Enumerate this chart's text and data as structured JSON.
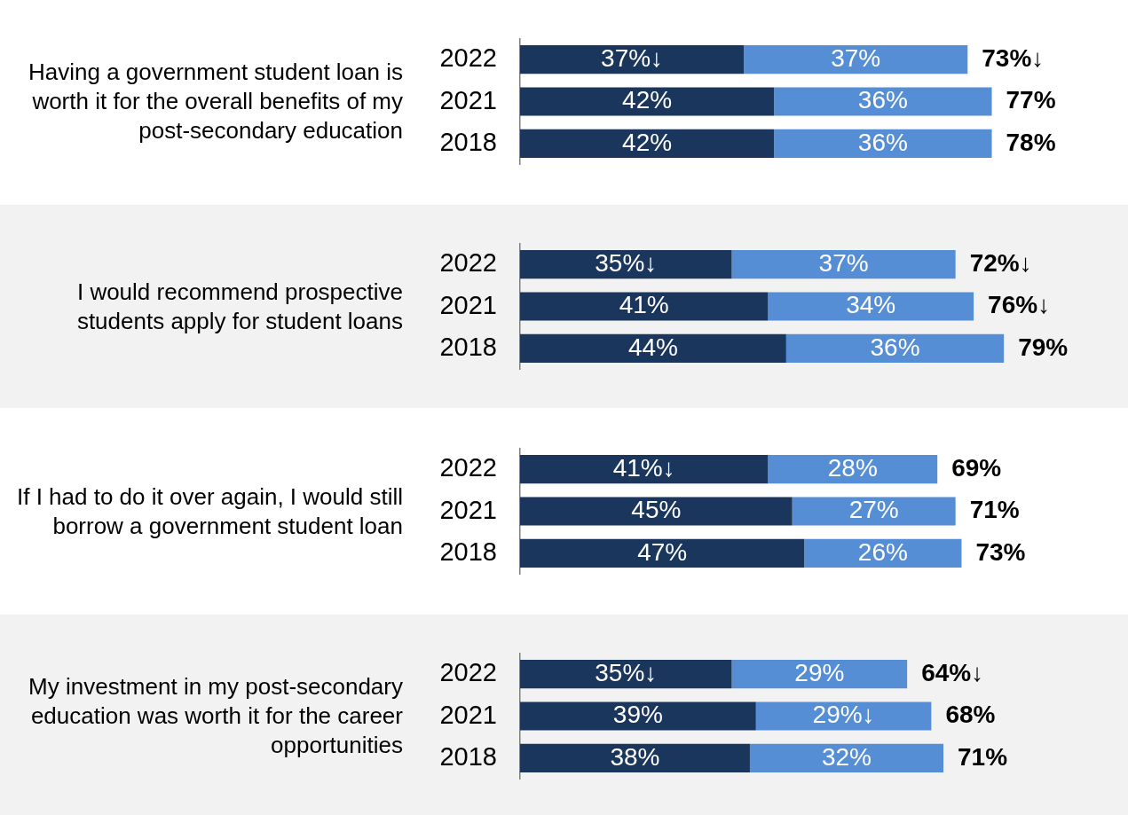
{
  "chart_data": [
    {
      "type": "bar",
      "orientation": "horizontal",
      "stacked": true,
      "grid": false,
      "tick_labels": "y",
      "title": "Having a government student loan is worth it for the overall benefits of my post-secondary education",
      "categories": [
        "2022",
        "2021",
        "2018"
      ],
      "series": [
        {
          "color": "#1b365d",
          "values": [
            37,
            42,
            42
          ],
          "value_labels": [
            "37%↓",
            "42%",
            "42%"
          ]
        },
        {
          "color": "#558ed5",
          "values": [
            37,
            36,
            36
          ],
          "value_labels": [
            "37%",
            "36%",
            "36%"
          ]
        }
      ],
      "totals": [
        "73%↓",
        "77%",
        "78%"
      ]
    },
    {
      "type": "bar",
      "orientation": "horizontal",
      "stacked": true,
      "grid": false,
      "tick_labels": "y",
      "title": "I would recommend prospective students apply for student loans",
      "categories": [
        "2022",
        "2021",
        "2018"
      ],
      "series": [
        {
          "color": "#1b365d",
          "values": [
            35,
            41,
            44
          ],
          "value_labels": [
            "35%↓",
            "41%",
            "44%"
          ]
        },
        {
          "color": "#558ed5",
          "values": [
            37,
            34,
            36
          ],
          "value_labels": [
            "37%",
            "34%",
            "36%"
          ]
        }
      ],
      "totals": [
        "72%↓",
        "76%↓",
        "79%"
      ]
    },
    {
      "type": "bar",
      "orientation": "horizontal",
      "stacked": true,
      "grid": false,
      "tick_labels": "y",
      "title": "If I had to do it over again, I would still borrow a government student loan",
      "categories": [
        "2022",
        "2021",
        "2018"
      ],
      "series": [
        {
          "color": "#1b365d",
          "values": [
            41,
            45,
            47
          ],
          "value_labels": [
            "41%↓",
            "45%",
            "47%"
          ]
        },
        {
          "color": "#558ed5",
          "values": [
            28,
            27,
            26
          ],
          "value_labels": [
            "28%",
            "27%",
            "26%"
          ]
        }
      ],
      "totals": [
        "69%",
        "71%",
        "73%"
      ]
    },
    {
      "type": "bar",
      "orientation": "horizontal",
      "stacked": true,
      "grid": false,
      "tick_labels": "y",
      "title": "My investment in my post-secondary education was worth it for the career opportunities",
      "categories": [
        "2022",
        "2021",
        "2018"
      ],
      "series": [
        {
          "color": "#1b365d",
          "values": [
            35,
            39,
            38
          ],
          "value_labels": [
            "35%↓",
            "39%",
            "38%"
          ]
        },
        {
          "color": "#558ed5",
          "values": [
            29,
            29,
            32
          ],
          "value_labels": [
            "29%",
            "29%↓",
            "32%"
          ]
        }
      ],
      "totals": [
        "64%↓",
        "68%",
        "71%"
      ]
    }
  ]
}
